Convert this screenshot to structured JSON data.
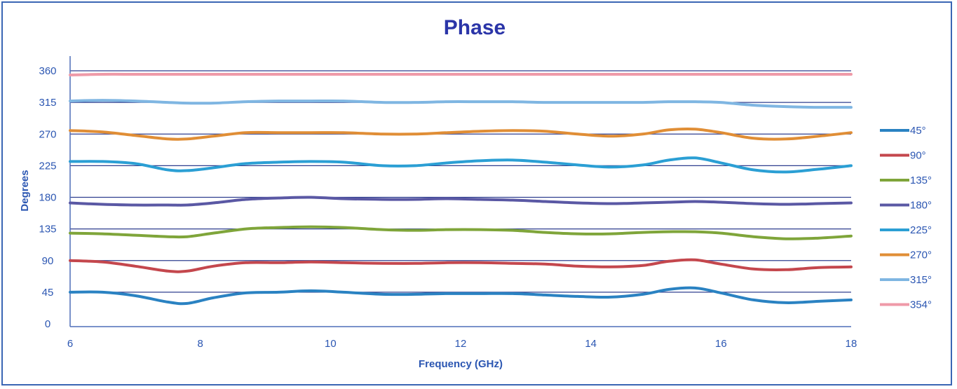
{
  "chart_data": {
    "type": "line",
    "title": "Phase",
    "xlabel": "Frequency (GHz)",
    "ylabel": "Degrees",
    "xlim": [
      6,
      18
    ],
    "ylim": [
      0,
      360
    ],
    "x_ticks": [
      "6",
      "8",
      "10",
      "12",
      "14",
      "16",
      "18"
    ],
    "y_ticks": [
      "0",
      "45",
      "90",
      "135",
      "180",
      "225",
      "270",
      "315",
      "360"
    ],
    "grid": "horizontal reference lines at each 45° step",
    "legend_position": "right",
    "x": [
      6,
      6.5,
      7,
      7.5,
      7.8,
      8.2,
      8.7,
      9.2,
      9.7,
      10.2,
      10.8,
      11.3,
      11.8,
      12.3,
      12.8,
      13.3,
      13.8,
      14.3,
      14.8,
      15.2,
      15.6,
      16,
      16.5,
      17,
      17.5,
      18
    ],
    "series": [
      {
        "name": "45°",
        "color": "#2a82c2",
        "values": [
          45,
          45,
          40,
          31,
          29,
          37,
          44,
          45,
          47,
          45,
          42,
          42,
          43,
          43,
          43,
          41,
          39,
          38,
          42,
          49,
          51,
          44,
          34,
          30,
          32,
          34
        ]
      },
      {
        "name": "90°",
        "color": "#c4474d",
        "values": [
          90,
          88,
          82,
          75,
          75,
          82,
          87,
          87,
          88,
          87,
          86,
          86,
          87,
          87,
          86,
          85,
          82,
          81,
          83,
          89,
          91,
          85,
          78,
          77,
          80,
          81
        ]
      },
      {
        "name": "135°",
        "color": "#7fa53a",
        "values": [
          129,
          128,
          126,
          124,
          124,
          129,
          135,
          137,
          138,
          137,
          134,
          133,
          134,
          134,
          133,
          130,
          128,
          128,
          130,
          131,
          131,
          129,
          124,
          121,
          122,
          125
        ]
      },
      {
        "name": "180°",
        "color": "#5a58a4",
        "values": [
          172,
          170,
          169,
          169,
          169,
          172,
          177,
          179,
          180,
          178,
          177,
          177,
          178,
          177,
          176,
          174,
          172,
          171,
          172,
          173,
          174,
          173,
          171,
          170,
          171,
          172
        ]
      },
      {
        "name": "225°",
        "color": "#2b9fd4",
        "values": [
          231,
          231,
          228,
          219,
          218,
          222,
          228,
          230,
          231,
          230,
          225,
          225,
          229,
          232,
          233,
          230,
          226,
          223,
          226,
          233,
          236,
          229,
          219,
          216,
          220,
          225
        ]
      },
      {
        "name": "270°",
        "color": "#e08e36",
        "values": [
          275,
          273,
          268,
          263,
          263,
          267,
          272,
          272,
          272,
          272,
          270,
          270,
          272,
          274,
          275,
          274,
          270,
          267,
          270,
          276,
          277,
          272,
          264,
          263,
          267,
          272
        ]
      },
      {
        "name": "315°",
        "color": "#7fb6e2",
        "values": [
          317,
          318,
          317,
          315,
          314,
          314,
          316,
          317,
          317,
          317,
          315,
          315,
          316,
          316,
          316,
          315,
          315,
          315,
          315,
          316,
          316,
          315,
          311,
          309,
          308,
          308
        ]
      },
      {
        "name": "354°",
        "color": "#ef9aa8",
        "values": [
          354,
          355,
          355,
          355,
          355,
          355,
          355,
          355,
          355,
          355,
          355,
          355,
          355,
          355,
          355,
          355,
          355,
          355,
          355,
          355,
          355,
          355,
          355,
          355,
          355,
          355
        ]
      }
    ]
  }
}
